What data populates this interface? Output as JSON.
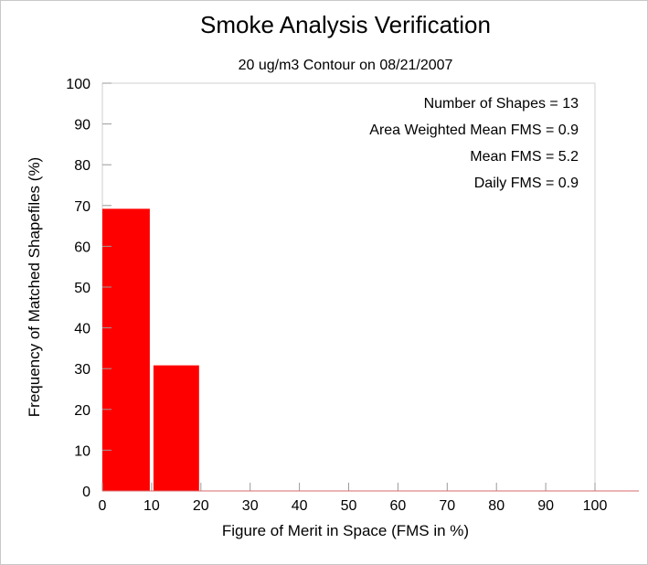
{
  "chart_data": {
    "type": "bar",
    "title": "Smoke Analysis Verification",
    "subtitle": "20 ug/m3 Contour on 08/21/2007",
    "xlabel": "Figure of Merit in Space (FMS in %)",
    "ylabel": "Frequency of Matched Shapefiles (%)",
    "xlim": [
      0,
      100
    ],
    "ylim": [
      0,
      100
    ],
    "x_ticks": [
      "0",
      "10",
      "20",
      "30",
      "40",
      "50",
      "60",
      "70",
      "80",
      "90",
      "100"
    ],
    "y_ticks": [
      "0",
      "10",
      "20",
      "30",
      "40",
      "50",
      "60",
      "70",
      "80",
      "90",
      "100"
    ],
    "bins": [
      {
        "start": 0,
        "end": 10,
        "value": 69.2
      },
      {
        "start": 10,
        "end": 20,
        "value": 30.8
      },
      {
        "start": 20,
        "end": 30,
        "value": 0
      },
      {
        "start": 30,
        "end": 40,
        "value": 0
      },
      {
        "start": 40,
        "end": 50,
        "value": 0
      },
      {
        "start": 50,
        "end": 60,
        "value": 0
      },
      {
        "start": 60,
        "end": 70,
        "value": 0
      },
      {
        "start": 70,
        "end": 80,
        "value": 0
      },
      {
        "start": 80,
        "end": 90,
        "value": 0
      },
      {
        "start": 90,
        "end": 100,
        "value": 0
      }
    ],
    "bar_color": "#ff0000",
    "grid": false,
    "annotations": [
      "Number of Shapes = 13",
      "Area Weighted Mean FMS = 0.9",
      "Mean FMS = 5.2",
      "Daily FMS = 0.9"
    ]
  }
}
